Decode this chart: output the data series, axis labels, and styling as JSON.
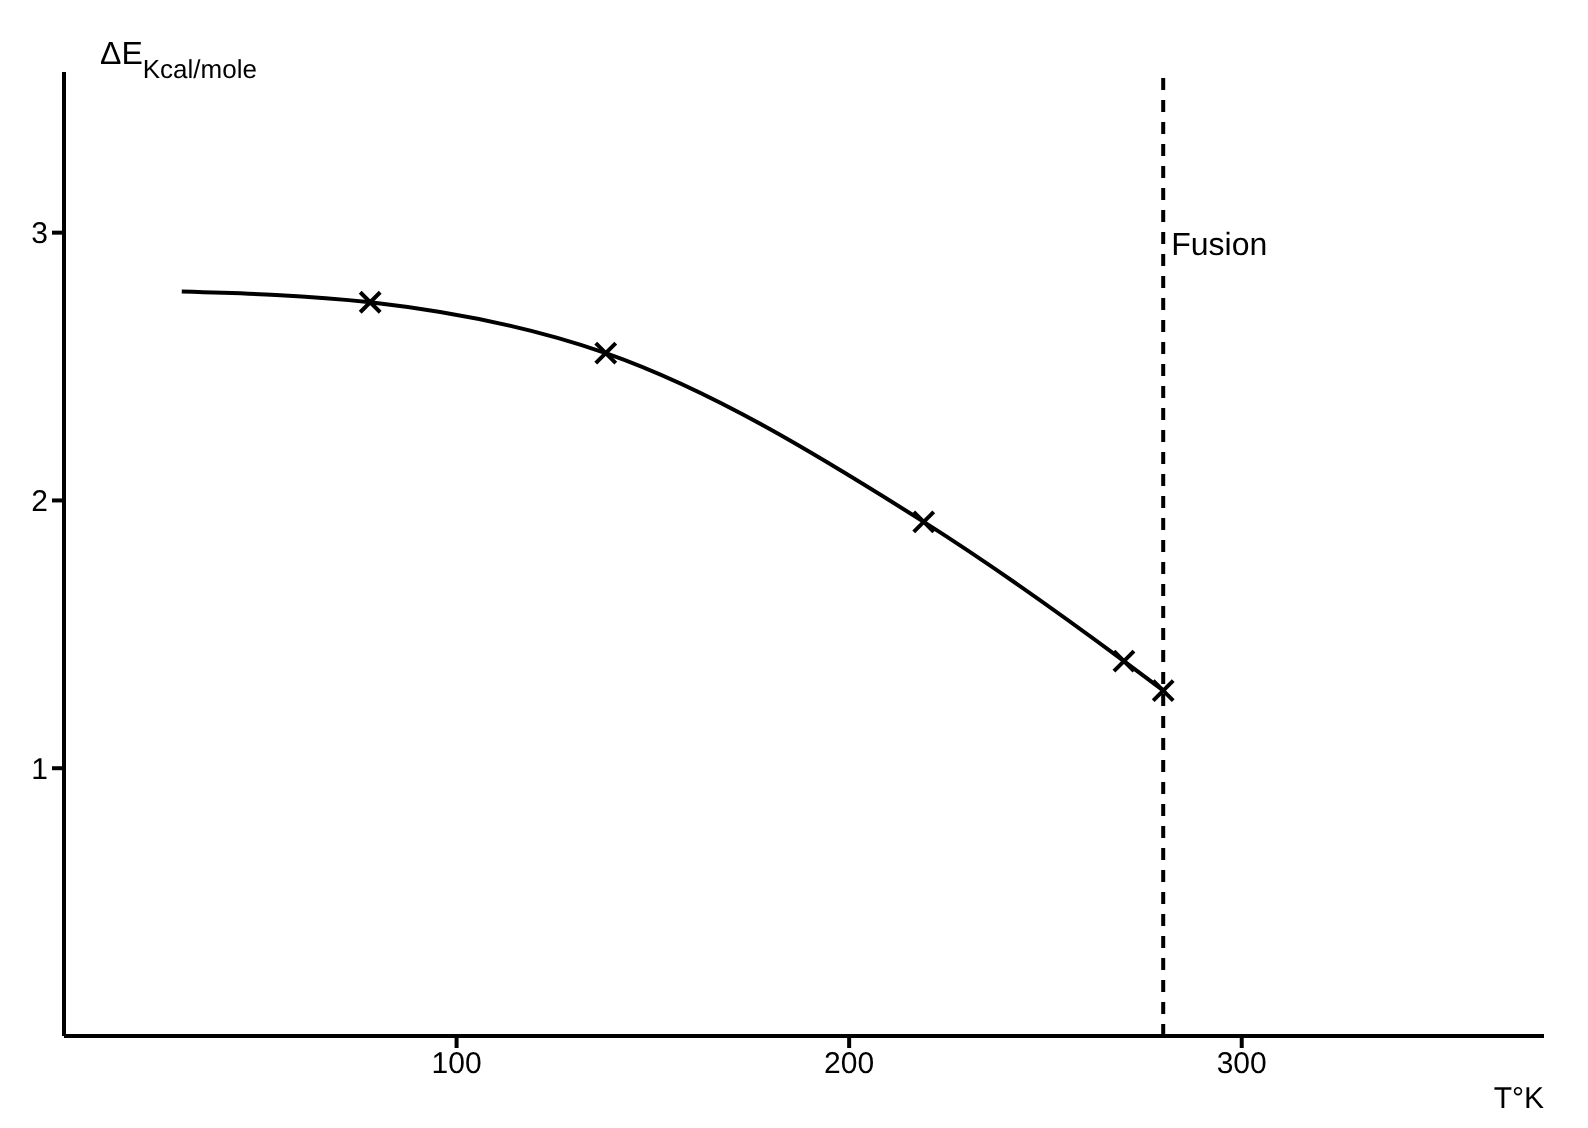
{
  "chart_data": {
    "type": "line",
    "xlabel": "T°K",
    "ylabel": "ΔE$_{Kcal/mole}$",
    "xlim": [
      0,
      377
    ],
    "ylim": [
      0,
      3.6
    ],
    "xticks": [
      100,
      200,
      300
    ],
    "yticks": [
      1,
      2,
      3
    ],
    "line_style": "solid",
    "series": [
      {
        "color": "#000000",
        "marker": "none",
        "x": [
          30,
          78,
          138,
          219,
          270,
          280
        ],
        "values": [
          2.78,
          2.74,
          2.55,
          1.92,
          1.4,
          1.29
        ]
      },
      {
        "type": "scatter",
        "marker": "cross",
        "color": "#000000",
        "x": [
          78,
          138,
          219,
          270,
          280
        ],
        "values": [
          2.74,
          2.55,
          1.92,
          1.4,
          1.29
        ]
      }
    ],
    "ref_lines": [
      {
        "axis": "x",
        "value": 280,
        "label": "Fusion",
        "color": "#000000",
        "line_style": "dashed"
      }
    ]
  }
}
